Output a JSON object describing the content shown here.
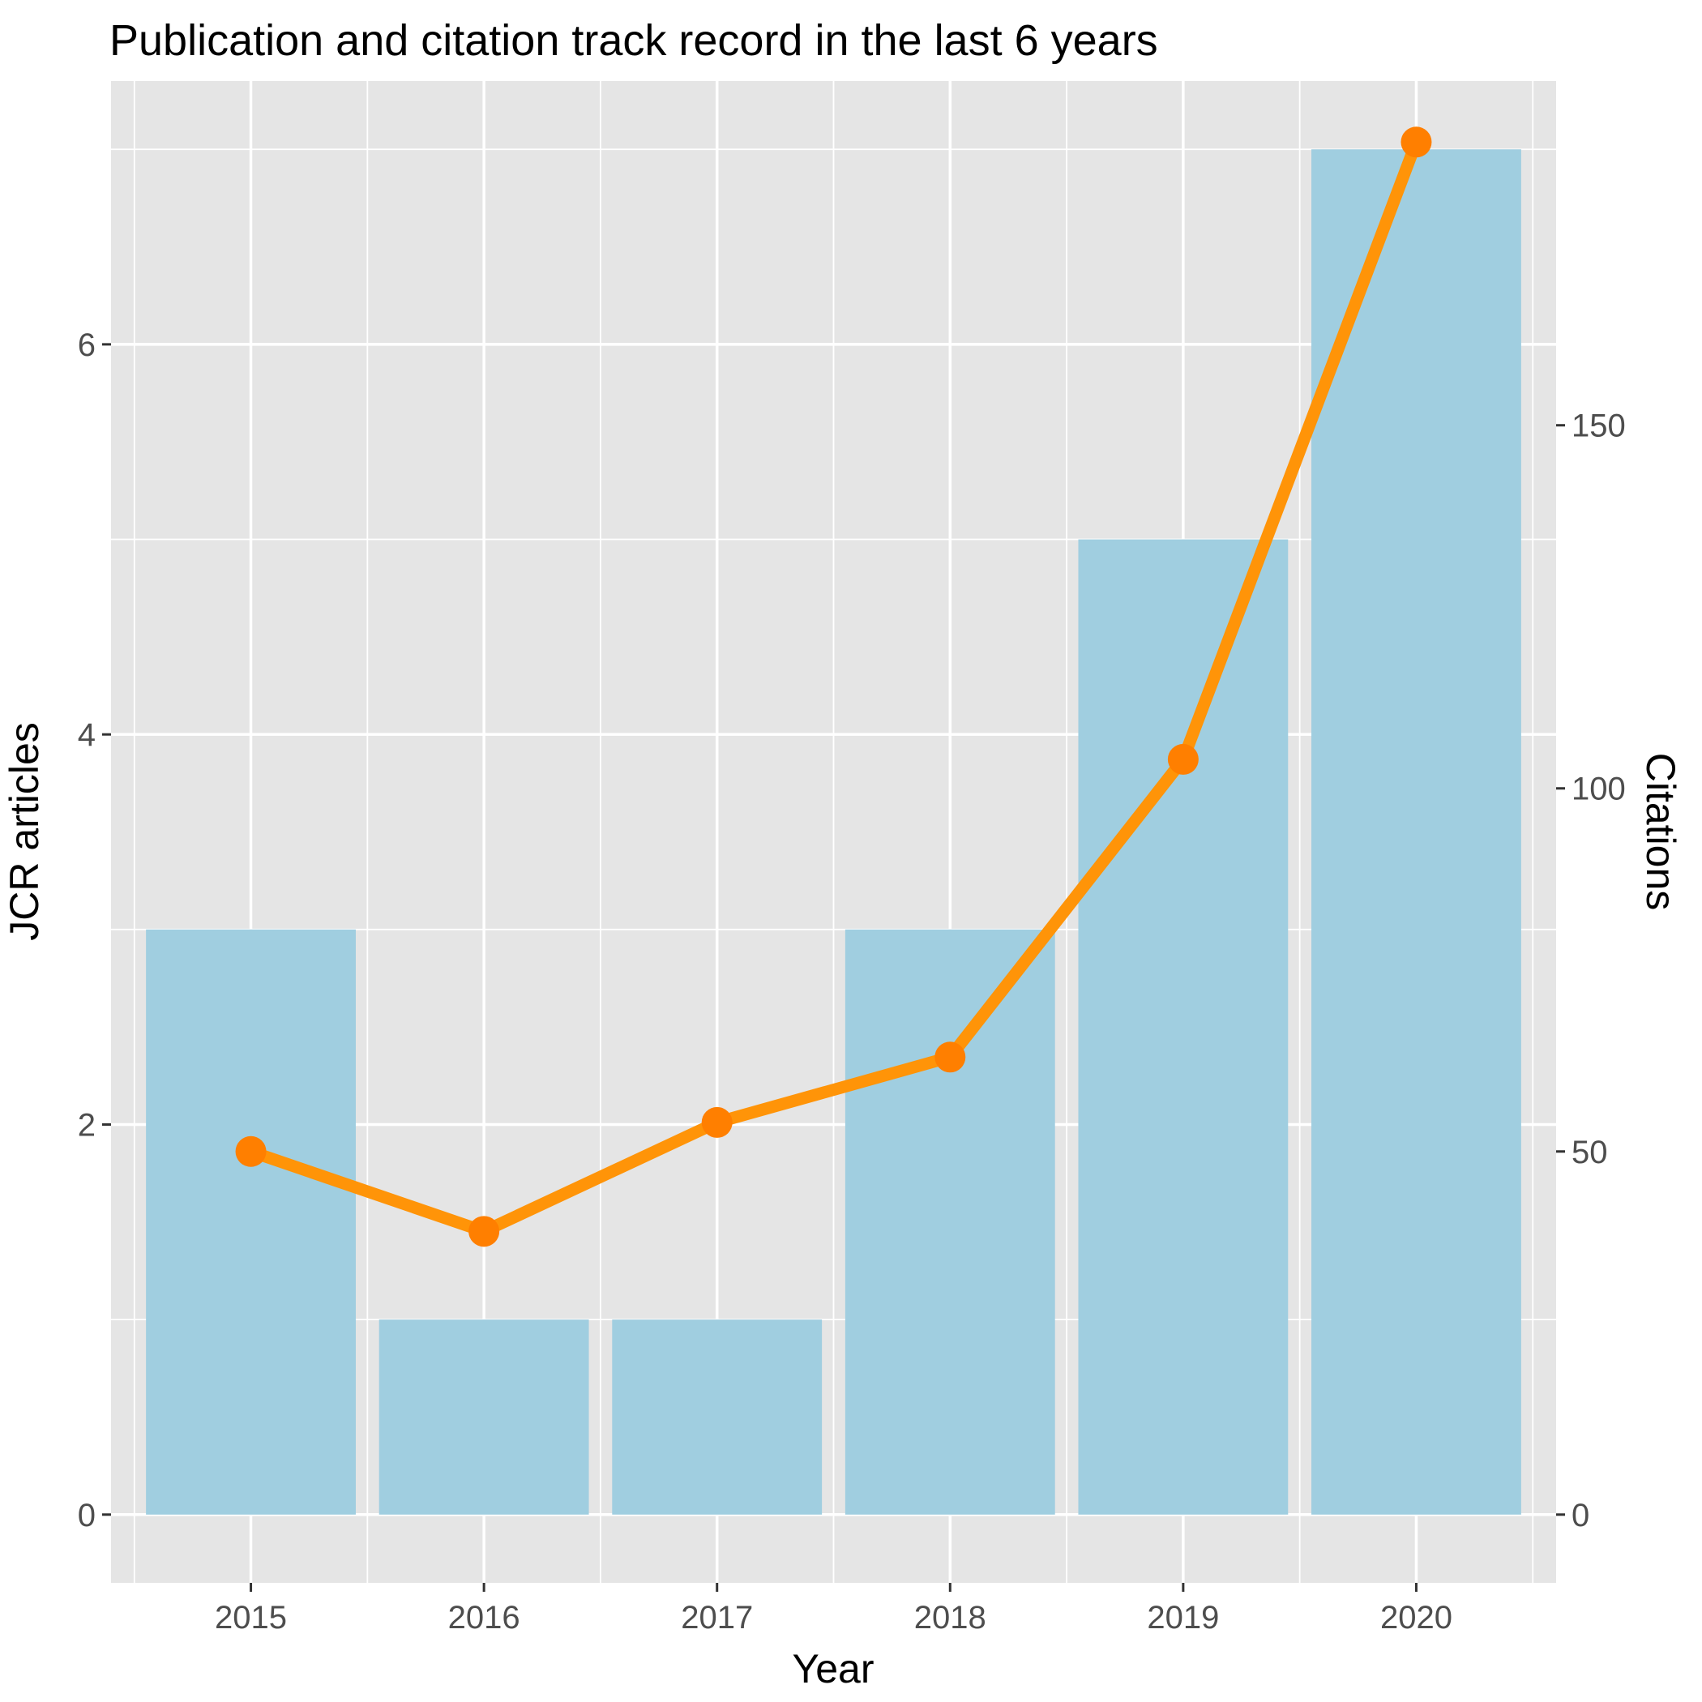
{
  "chart_data": {
    "type": "bar",
    "title": "Publication and citation track record in the last 6 years",
    "xlabel": "Year",
    "ylabel": "JCR articles",
    "y2label": "Citations",
    "categories": [
      "2015",
      "2016",
      "2017",
      "2018",
      "2019",
      "2020"
    ],
    "series": [
      {
        "type": "bar",
        "axis": "left",
        "values": [
          3,
          1,
          1,
          3,
          5,
          7
        ],
        "color": "#a0cee0"
      },
      {
        "type": "line",
        "axis": "right",
        "values": [
          50,
          39,
          54,
          63,
          104,
          189
        ],
        "color": "#ff9408",
        "marker_color": "#ff7f00"
      }
    ],
    "ylim": [
      -0.35,
      7.35
    ],
    "y_ticks": [
      0,
      2,
      4,
      6
    ],
    "y2lim": [
      -9.4,
      197.4
    ],
    "y2_ticks": [
      0,
      50,
      100,
      150
    ],
    "grid": true,
    "panel_background": "#e5e5e5",
    "grid_color": "#ffffff"
  }
}
